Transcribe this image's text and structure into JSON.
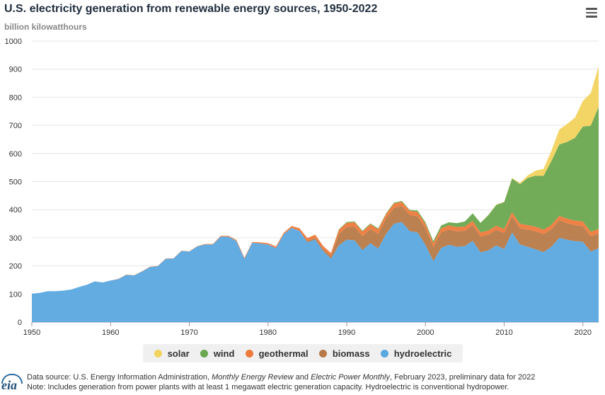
{
  "header": {
    "title": "U.S. electricity generation from renewable energy sources, 1950-2022",
    "units": "billion kilowatthours"
  },
  "footer": {
    "line1_prefix": "Data source: U.S. Energy Information Administration, ",
    "line1_em1": "Monthly Energy Review",
    "line1_mid": " and ",
    "line1_em2": "Electric Power Monthly",
    "line1_suffix": ", February 2023, preliminary data for 2022",
    "line2": "Note: Includes generation from power plants with at least 1 megawatt electric generation capacity. Hydroelectric is conventional hydropower.",
    "logo_text": "eia"
  },
  "chart_data": {
    "type": "area",
    "stacked": true,
    "title": "U.S. electricity generation from renewable energy sources, 1950-2022",
    "ylabel": "billion kilowatthours",
    "xlim": [
      1950,
      2022
    ],
    "ylim": [
      0,
      1000
    ],
    "yticks": [
      0,
      100,
      200,
      300,
      400,
      500,
      600,
      700,
      800,
      900,
      1000
    ],
    "xticks": [
      1950,
      1960,
      1970,
      1980,
      1990,
      2000,
      2010,
      2020
    ],
    "grid": true,
    "legend_position": "bottom",
    "x": [
      1950,
      1951,
      1952,
      1953,
      1954,
      1955,
      1956,
      1957,
      1958,
      1959,
      1960,
      1961,
      1962,
      1963,
      1964,
      1965,
      1966,
      1967,
      1968,
      1969,
      1970,
      1971,
      1972,
      1973,
      1974,
      1975,
      1976,
      1977,
      1978,
      1979,
      1980,
      1981,
      1982,
      1983,
      1984,
      1985,
      1986,
      1987,
      1988,
      1989,
      1990,
      1991,
      1992,
      1993,
      1994,
      1995,
      1996,
      1997,
      1998,
      1999,
      2000,
      2001,
      2002,
      2003,
      2004,
      2005,
      2006,
      2007,
      2008,
      2009,
      2010,
      2011,
      2012,
      2013,
      2014,
      2015,
      2016,
      2017,
      2018,
      2019,
      2020,
      2021,
      2022
    ],
    "series": [
      {
        "name": "hydroelectric",
        "color": "#5aa8e0",
        "values": [
          101,
          104,
          110,
          110,
          112,
          116,
          125,
          133,
          145,
          141,
          148,
          153,
          168,
          166,
          180,
          196,
          199,
          225,
          226,
          253,
          251,
          269,
          276,
          276,
          304,
          304,
          288,
          225,
          282,
          280,
          276,
          263,
          313,
          335,
          325,
          284,
          294,
          253,
          226,
          273,
          293,
          291,
          256,
          281,
          262,
          314,
          350,
          356,
          324,
          319,
          275,
          217,
          264,
          275,
          268,
          270,
          289,
          248,
          255,
          273,
          260,
          319,
          276,
          268,
          259,
          249,
          268,
          300,
          293,
          288,
          286,
          251,
          263
        ]
      },
      {
        "name": "biomass",
        "color": "#b87a48",
        "values": [
          0,
          0,
          0,
          0,
          0,
          0,
          0,
          0,
          0,
          0,
          0,
          0,
          0,
          0,
          0,
          0,
          0,
          0,
          0,
          0,
          0,
          0,
          0,
          0,
          0,
          0,
          0,
          0,
          0,
          0,
          0,
          0,
          0,
          0,
          0,
          5,
          6,
          7,
          9,
          40,
          45,
          48,
          50,
          50,
          52,
          55,
          56,
          57,
          57,
          58,
          60,
          50,
          55,
          54,
          55,
          55,
          56,
          56,
          56,
          55,
          57,
          57,
          58,
          61,
          64,
          64,
          62,
          62,
          59,
          57,
          55,
          54,
          53
        ]
      },
      {
        "name": "geothermal",
        "color": "#ee7a3c",
        "values": [
          0,
          0,
          0,
          0,
          0,
          0,
          0,
          0,
          0,
          0,
          0,
          1,
          1,
          1,
          1,
          1,
          1,
          1,
          1,
          1,
          1,
          1,
          2,
          2,
          3,
          3,
          4,
          4,
          3,
          4,
          5,
          6,
          5,
          7,
          9,
          10,
          11,
          11,
          11,
          15,
          15,
          16,
          16,
          17,
          16,
          15,
          16,
          15,
          15,
          15,
          14,
          14,
          15,
          15,
          15,
          15,
          15,
          15,
          15,
          15,
          15,
          15,
          16,
          16,
          16,
          16,
          16,
          16,
          16,
          16,
          17,
          16,
          16
        ]
      },
      {
        "name": "wind",
        "color": "#6aa84f",
        "values": [
          0,
          0,
          0,
          0,
          0,
          0,
          0,
          0,
          0,
          0,
          0,
          0,
          0,
          0,
          0,
          0,
          0,
          0,
          0,
          0,
          0,
          0,
          0,
          0,
          0,
          0,
          0,
          0,
          0,
          0,
          0,
          0,
          0,
          0,
          0,
          0,
          0,
          0,
          0,
          2,
          3,
          3,
          3,
          3,
          3,
          3,
          3,
          3,
          3,
          5,
          6,
          7,
          10,
          11,
          14,
          18,
          27,
          34,
          55,
          74,
          95,
          120,
          141,
          168,
          182,
          191,
          227,
          254,
          273,
          295,
          338,
          378,
          434
        ]
      },
      {
        "name": "solar",
        "color": "#f2d35e",
        "values": [
          0,
          0,
          0,
          0,
          0,
          0,
          0,
          0,
          0,
          0,
          0,
          0,
          0,
          0,
          0,
          0,
          0,
          0,
          0,
          0,
          0,
          0,
          0,
          0,
          0,
          0,
          0,
          0,
          0,
          0,
          0,
          0,
          0,
          0,
          0,
          0,
          0,
          0,
          0,
          0,
          0,
          0,
          0,
          0,
          0,
          0,
          0,
          0,
          0,
          0,
          0,
          0,
          0,
          0,
          0,
          0,
          0,
          0,
          1,
          1,
          1,
          2,
          4,
          9,
          18,
          25,
          36,
          53,
          64,
          72,
          91,
          116,
          144
        ]
      }
    ]
  }
}
